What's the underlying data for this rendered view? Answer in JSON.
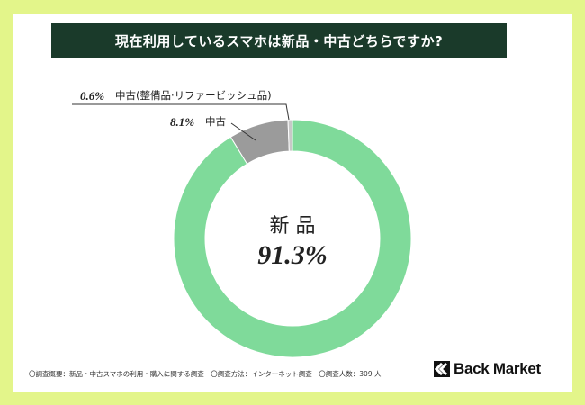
{
  "title": "現在利用しているスマホは新品・中古どちらですか?",
  "chart_data": {
    "type": "pie",
    "title": "現在利用しているスマホは新品・中古どちらですか?",
    "categories": [
      "新品",
      "中古",
      "中古(整備品·リファービッシュ品)"
    ],
    "values": [
      91.3,
      8.1,
      0.6
    ],
    "labels": [
      "91.3%",
      "8.1%",
      "0.6%"
    ],
    "colors": [
      "#7fda9a",
      "#9b9b9b",
      "#c8c8c8"
    ]
  },
  "center_label": {
    "name": "新 品",
    "value": "91.3%"
  },
  "callouts": {
    "used": {
      "pct": "8.1%",
      "label": "中古"
    },
    "refurb": {
      "pct": "0.6%",
      "label": "中古(整備品·リファービッシュ品)"
    }
  },
  "footnote": "〇調査概要：新品・中古スマホの利用・購入に関する調査　〇調査方法：インターネット調査　〇調査人数：309 人",
  "brand": "Back Market",
  "colors": {
    "background": "#e3f58a",
    "title_bar": "#1a3a2a"
  }
}
